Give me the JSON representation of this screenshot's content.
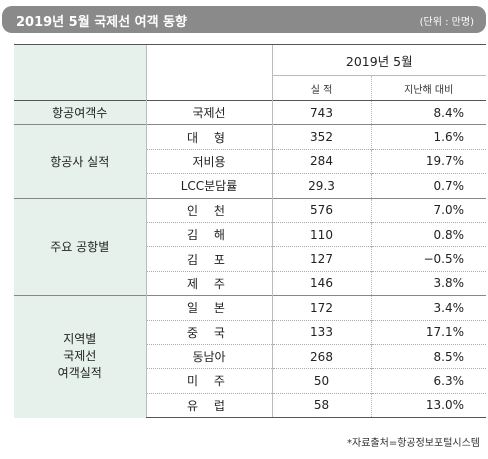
{
  "header": {
    "title": "2019년 5월 국제선 여객 동향",
    "unit": "(단위 : 만명)"
  },
  "columns": {
    "period": "2019년 5월",
    "actual": "실 적",
    "yoy": "지난해 대비"
  },
  "groups": [
    {
      "name": "항공여객수",
      "rows": [
        {
          "label": "국제선",
          "value": "743",
          "change": "8.4%"
        }
      ]
    },
    {
      "name": "항공사 실적",
      "rows": [
        {
          "label": "대 형",
          "value": "352",
          "change": "1.6%"
        },
        {
          "label": "저비용",
          "value": "284",
          "change": "19.7%"
        },
        {
          "label": "LCC분담률",
          "value": "29.3",
          "change": "0.7%"
        }
      ]
    },
    {
      "name": "주요 공항별",
      "rows": [
        {
          "label": "인 천",
          "value": "576",
          "change": "7.0%"
        },
        {
          "label": "김 해",
          "value": "110",
          "change": "0.8%"
        },
        {
          "label": "김 포",
          "value": "127",
          "change": "−0.5%"
        },
        {
          "label": "제 주",
          "value": "146",
          "change": "3.8%"
        }
      ]
    },
    {
      "name": "지역별\n국제선\n여객실적",
      "rows": [
        {
          "label": "일 본",
          "value": "172",
          "change": "3.4%"
        },
        {
          "label": "중 국",
          "value": "133",
          "change": "17.1%"
        },
        {
          "label": "동남아",
          "value": "268",
          "change": "8.5%"
        },
        {
          "label": "미 주",
          "value": "50",
          "change": "6.3%"
        },
        {
          "label": "유 럽",
          "value": "58",
          "change": "13.0%"
        }
      ]
    }
  ],
  "source": "*자료출처=항공정보포털시스템"
}
